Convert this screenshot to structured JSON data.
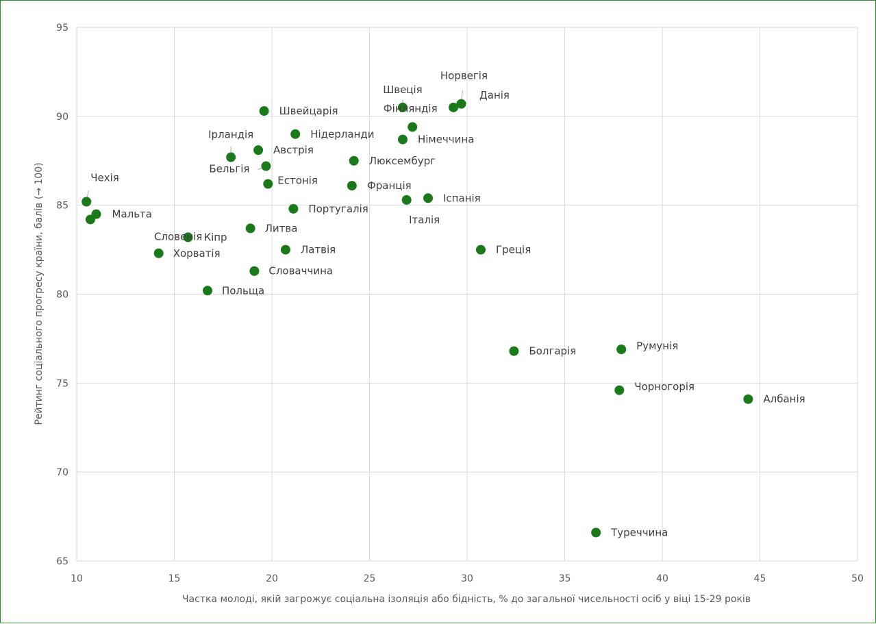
{
  "chart_data": {
    "type": "scatter",
    "xlabel": "Частка молоді, якій загрожує соціальна ізоляція або бідність, % до загальної чисельності осіб у віці 15-29 років",
    "ylabel": "Рейтинг соціального прогресу країни, балів (→ 100)",
    "xlim": [
      10,
      50
    ],
    "ylim": [
      65,
      95
    ],
    "x_ticks": [
      "10",
      "15",
      "20",
      "25",
      "30",
      "35",
      "40",
      "45",
      "50"
    ],
    "y_ticks": [
      "65",
      "70",
      "75",
      "80",
      "85",
      "90",
      "95"
    ],
    "grid": true,
    "marker_color": "#1a7a1a",
    "points": [
      {
        "name": "Чехія",
        "x": 10.5,
        "y": 85.2
      },
      {
        "name": "Мальта",
        "x": 11.0,
        "y": 84.5
      },
      {
        "name": "Словенія",
        "x": 10.7,
        "y": 84.2
      },
      {
        "name": "Хорватія",
        "x": 14.2,
        "y": 82.3
      },
      {
        "name": "Кіпр",
        "x": 15.7,
        "y": 83.2
      },
      {
        "name": "Польща",
        "x": 16.7,
        "y": 80.2
      },
      {
        "name": "Ірландія",
        "x": 17.9,
        "y": 87.7
      },
      {
        "name": "Литва",
        "x": 18.9,
        "y": 83.7
      },
      {
        "name": "Словаччина",
        "x": 19.1,
        "y": 81.3
      },
      {
        "name": "Австрія",
        "x": 19.3,
        "y": 88.1
      },
      {
        "name": "Швейцарія",
        "x": 19.6,
        "y": 90.3
      },
      {
        "name": "Бельгія",
        "x": 19.7,
        "y": 87.2
      },
      {
        "name": "Естонія",
        "x": 19.8,
        "y": 86.2
      },
      {
        "name": "Португалія",
        "x": 21.1,
        "y": 84.8
      },
      {
        "name": "Нідерланди",
        "x": 21.2,
        "y": 89.0
      },
      {
        "name": "Латвія",
        "x": 20.7,
        "y": 82.5
      },
      {
        "name": "Франція",
        "x": 24.1,
        "y": 86.1
      },
      {
        "name": "Люксембург",
        "x": 24.2,
        "y": 87.5
      },
      {
        "name": "Швеція",
        "x": 26.7,
        "y": 90.5
      },
      {
        "name": "Німеччина",
        "x": 26.7,
        "y": 88.7
      },
      {
        "name": "Італія",
        "x": 26.9,
        "y": 85.3
      },
      {
        "name": "Фінляндія",
        "x": 27.2,
        "y": 89.4
      },
      {
        "name": "Іспанія",
        "x": 28.0,
        "y": 85.4
      },
      {
        "name": "Данія",
        "x": 29.3,
        "y": 90.5
      },
      {
        "name": "Норвегія",
        "x": 29.7,
        "y": 90.7
      },
      {
        "name": "Греція",
        "x": 30.7,
        "y": 82.5
      },
      {
        "name": "Болгарія",
        "x": 32.4,
        "y": 76.8
      },
      {
        "name": "Туреччина",
        "x": 36.6,
        "y": 66.6
      },
      {
        "name": "Чорногорія",
        "x": 37.8,
        "y": 74.6
      },
      {
        "name": "Румунія",
        "x": 37.9,
        "y": 76.9
      },
      {
        "name": "Албанія",
        "x": 44.4,
        "y": 74.1
      }
    ]
  }
}
